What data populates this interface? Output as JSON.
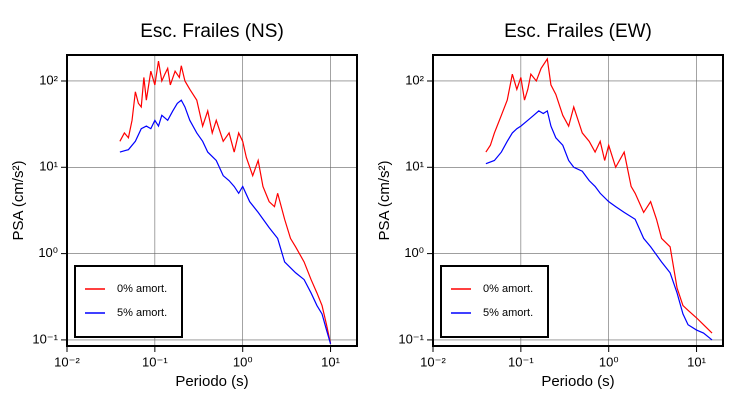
{
  "chart_data": [
    {
      "type": "line",
      "title": "Esc. Frailes (NS)",
      "x_label": "Periodo (s)",
      "y_label": "PSA (cm/s²)",
      "log_x": true,
      "log_y": true,
      "grid": true,
      "legend": "lower left",
      "xlim": [
        0.01,
        20
      ],
      "ylim": [
        0.085,
        200
      ],
      "xticks": [
        {
          "value": 0.01,
          "label": "10⁻²"
        },
        {
          "value": 0.1,
          "label": "10⁻¹"
        },
        {
          "value": 1,
          "label": "10⁰"
        },
        {
          "value": 10,
          "label": "10¹"
        }
      ],
      "yticks": [
        {
          "value": 0.1,
          "label": "10⁻¹"
        },
        {
          "value": 1,
          "label": "10⁰"
        },
        {
          "value": 10,
          "label": "10¹"
        },
        {
          "value": 100,
          "label": "10²"
        }
      ],
      "series": [
        {
          "name": "0% amort.",
          "color": "#ff0000",
          "x": [
            0.04,
            0.045,
            0.05,
            0.055,
            0.06,
            0.065,
            0.07,
            0.075,
            0.08,
            0.09,
            0.1,
            0.11,
            0.12,
            0.13,
            0.14,
            0.15,
            0.17,
            0.19,
            0.2,
            0.22,
            0.25,
            0.3,
            0.35,
            0.4,
            0.45,
            0.5,
            0.6,
            0.7,
            0.8,
            0.9,
            1.0,
            1.1,
            1.3,
            1.5,
            1.7,
            2.0,
            2.3,
            2.5,
            3.0,
            3.5,
            4,
            5,
            6,
            7,
            8,
            9,
            10
          ],
          "values": [
            20,
            25,
            22,
            35,
            75,
            55,
            50,
            110,
            60,
            130,
            90,
            170,
            100,
            120,
            140,
            90,
            130,
            110,
            150,
            100,
            80,
            60,
            30,
            45,
            25,
            35,
            20,
            25,
            15,
            25,
            20,
            13,
            8,
            12,
            6,
            4,
            3.5,
            5,
            2.5,
            1.5,
            1.2,
            0.8,
            0.5,
            0.35,
            0.25,
            0.15,
            0.09
          ]
        },
        {
          "name": "5% amort.",
          "color": "#0000ff",
          "x": [
            0.04,
            0.05,
            0.06,
            0.07,
            0.08,
            0.09,
            0.1,
            0.11,
            0.12,
            0.14,
            0.16,
            0.18,
            0.2,
            0.22,
            0.25,
            0.3,
            0.35,
            0.4,
            0.5,
            0.6,
            0.7,
            0.8,
            0.9,
            1.0,
            1.2,
            1.5,
            2.0,
            2.5,
            3,
            4,
            5,
            6,
            7,
            8,
            9,
            10
          ],
          "values": [
            15,
            16,
            20,
            28,
            30,
            28,
            35,
            30,
            40,
            35,
            45,
            55,
            60,
            50,
            35,
            25,
            20,
            15,
            12,
            8,
            7,
            6,
            5,
            6,
            4,
            3,
            2,
            1.5,
            0.8,
            0.6,
            0.5,
            0.35,
            0.25,
            0.2,
            0.13,
            0.09
          ]
        }
      ]
    },
    {
      "type": "line",
      "title": "Esc. Frailes (EW)",
      "x_label": "Periodo (s)",
      "y_label": "PSA (cm/s²)",
      "log_x": true,
      "log_y": true,
      "grid": true,
      "legend": "lower left",
      "xlim": [
        0.01,
        20
      ],
      "ylim": [
        0.085,
        200
      ],
      "xticks": [
        {
          "value": 0.01,
          "label": "10⁻²"
        },
        {
          "value": 0.1,
          "label": "10⁻¹"
        },
        {
          "value": 1,
          "label": "10⁰"
        },
        {
          "value": 10,
          "label": "10¹"
        }
      ],
      "yticks": [
        {
          "value": 0.1,
          "label": "10⁻¹"
        },
        {
          "value": 1,
          "label": "10⁰"
        },
        {
          "value": 10,
          "label": "10¹"
        },
        {
          "value": 100,
          "label": "10²"
        }
      ],
      "series": [
        {
          "name": "0% amort.",
          "color": "#ff0000",
          "x": [
            0.04,
            0.045,
            0.05,
            0.06,
            0.07,
            0.08,
            0.09,
            0.1,
            0.11,
            0.12,
            0.13,
            0.15,
            0.17,
            0.2,
            0.22,
            0.25,
            0.3,
            0.35,
            0.4,
            0.5,
            0.6,
            0.7,
            0.8,
            0.9,
            1.0,
            1.2,
            1.5,
            1.8,
            2.0,
            2.5,
            3,
            3.5,
            4,
            5,
            6,
            7,
            8,
            10,
            12,
            15
          ],
          "values": [
            15,
            18,
            25,
            40,
            60,
            120,
            80,
            110,
            60,
            80,
            120,
            100,
            140,
            180,
            90,
            70,
            40,
            30,
            50,
            25,
            20,
            15,
            20,
            12,
            18,
            10,
            15,
            6,
            5,
            3,
            4,
            2.5,
            1.5,
            1.2,
            0.4,
            0.25,
            0.22,
            0.18,
            0.15,
            0.12
          ]
        },
        {
          "name": "5% amort.",
          "color": "#0000ff",
          "x": [
            0.04,
            0.05,
            0.06,
            0.07,
            0.08,
            0.09,
            0.1,
            0.12,
            0.14,
            0.16,
            0.18,
            0.2,
            0.22,
            0.25,
            0.3,
            0.35,
            0.4,
            0.5,
            0.6,
            0.7,
            0.8,
            1.0,
            1.2,
            1.5,
            2,
            2.5,
            3,
            4,
            5,
            6,
            7,
            8,
            10,
            12,
            15
          ],
          "values": [
            11,
            12,
            15,
            20,
            25,
            28,
            30,
            35,
            40,
            45,
            42,
            45,
            30,
            22,
            18,
            12,
            10,
            9,
            7,
            6,
            5,
            4,
            3.5,
            3,
            2.5,
            1.5,
            1.2,
            0.8,
            0.6,
            0.35,
            0.2,
            0.15,
            0.13,
            0.12,
            0.1
          ]
        }
      ]
    }
  ]
}
